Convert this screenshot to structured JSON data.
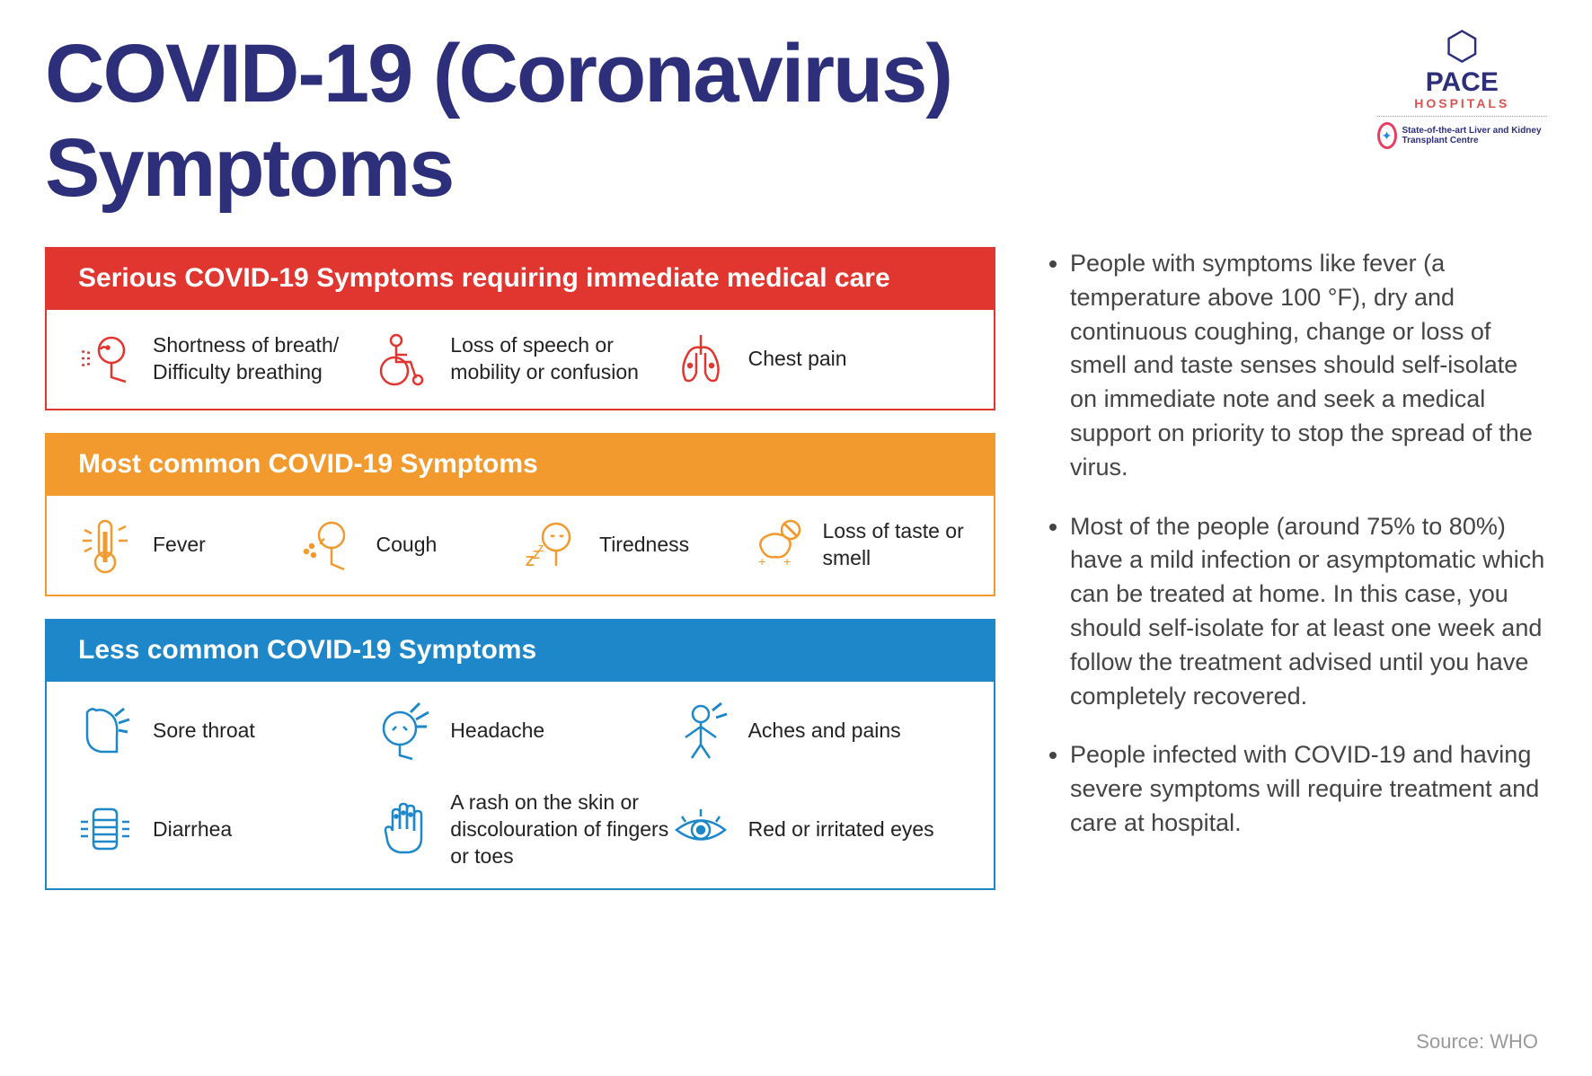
{
  "title": "COVID-19 (Coronavirus) Symptoms",
  "title_color": "#2e2f7a",
  "logo": {
    "name": "PACE",
    "sub": "HOSPITALS",
    "tagline": "State-of-the-art\nLiver and Kidney\nTransplant Centre"
  },
  "sections": [
    {
      "header": "Serious COVID-19 Symptoms requiring immediate medical care",
      "header_bg": "#e1362f",
      "border_color": "#e1362f",
      "icon_color": "#e1362f",
      "layout": "sym-3",
      "items": [
        {
          "icon": "breath",
          "label": "Shortness of breath/ Difficulty breathing"
        },
        {
          "icon": "wheelchair",
          "label": "Loss of speech or mobility or confusion"
        },
        {
          "icon": "lungs",
          "label": "Chest pain"
        }
      ]
    },
    {
      "header": "Most common COVID-19 Symptoms",
      "header_bg": "#f29a2e",
      "border_color": "#f29a2e",
      "icon_color": "#f29a2e",
      "layout": "sym-4",
      "items": [
        {
          "icon": "thermo",
          "label": "Fever"
        },
        {
          "icon": "cough",
          "label": "Cough"
        },
        {
          "icon": "sleep",
          "label": "Tiredness"
        },
        {
          "icon": "nosmell",
          "label": "Loss of taste or smell"
        }
      ]
    },
    {
      "header": "Less common COVID-19 Symptoms",
      "header_bg": "#1d87c9",
      "border_color": "#1d87c9",
      "icon_color": "#1d87c9",
      "layout": "sym-6",
      "items": [
        {
          "icon": "throat",
          "label": "Sore throat"
        },
        {
          "icon": "headache",
          "label": "Headache"
        },
        {
          "icon": "aches",
          "label": "Aches and pains"
        },
        {
          "icon": "diarrhea",
          "label": "Diarrhea"
        },
        {
          "icon": "hand",
          "label": "A rash on the skin or discolouration of fingers or toes"
        },
        {
          "icon": "eye",
          "label": "Red or irritated eyes"
        }
      ]
    }
  ],
  "bullets": [
    "People with symptoms like fever (a temperature above 100 °F), dry and continuous coughing, change or loss of smell and taste senses should self-isolate on immediate note and seek a medical support on priority to stop the spread of the virus.",
    "Most of the people (around 75% to 80%) have a mild infection or asymptomatic which can be treated at home. In this case, you should self-isolate for at least one week and follow the treatment advised until you have completely recovered.",
    "People infected with COVID-19 and having severe symptoms will require treatment and care at hospital."
  ],
  "source": "Source: WHO"
}
